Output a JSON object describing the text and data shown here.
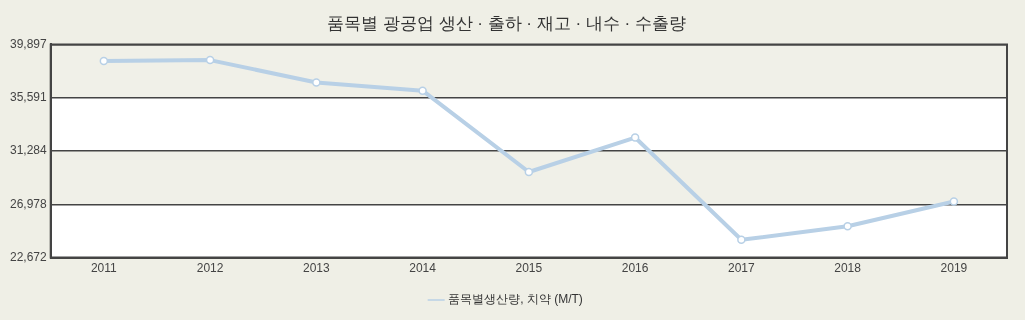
{
  "chart_data": {
    "type": "line",
    "title": "품목별 광공업 생산 · 출하 · 재고 · 내수 · 수출량",
    "categories": [
      "2011",
      "2012",
      "2013",
      "2014",
      "2015",
      "2016",
      "2017",
      "2018",
      "2019"
    ],
    "series": [
      {
        "name": "품목별생산량, 치약 (M/T)",
        "color": "#b8d0e6",
        "values": [
          38550,
          38630,
          36820,
          36160,
          29590,
          32370,
          24110,
          25200,
          27210
        ]
      }
    ],
    "ylim": [
      22672,
      39897
    ],
    "yticks": [
      {
        "value": 22672,
        "label": "22,672"
      },
      {
        "value": 26978,
        "label": "26,978"
      },
      {
        "value": 31284,
        "label": "31,284"
      },
      {
        "value": 35591,
        "label": "35,591"
      },
      {
        "value": 39897,
        "label": "39,897"
      }
    ],
    "grid": "y",
    "legend": "bottom",
    "marker": "circle",
    "line_style": "solid"
  }
}
